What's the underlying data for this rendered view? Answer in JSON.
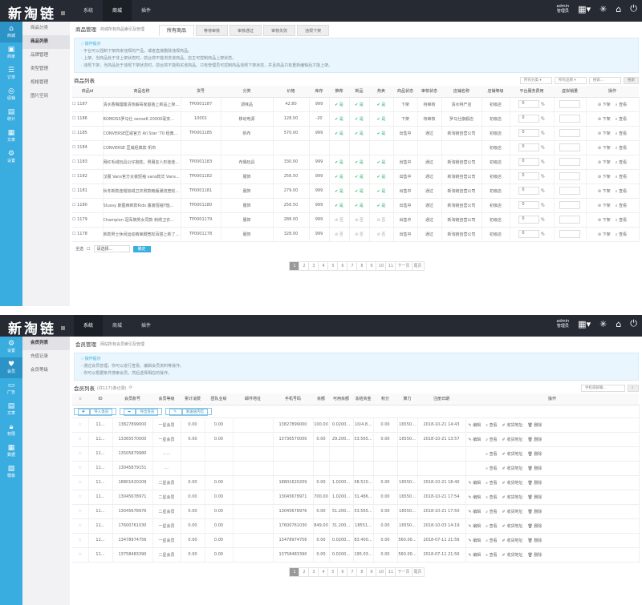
{
  "brand": {
    "logo": "新淘链",
    "nav": [
      "系统",
      "商城",
      "插件"
    ],
    "admin_name": "admin",
    "admin_role": "管理员"
  },
  "colors": {
    "header": "#252a33",
    "sidebar": "#39ace0",
    "accent": "#3aaee0",
    "ok": "#2db36e"
  },
  "panel1": {
    "active_nav": 1,
    "side": [
      {
        "icon": "shop-icon",
        "label": "商城"
      },
      {
        "icon": "bag-icon",
        "label": "商家"
      },
      {
        "icon": "order-icon",
        "label": "订单"
      },
      {
        "icon": "promo-icon",
        "label": "促销"
      },
      {
        "icon": "stat-icon",
        "label": "统计"
      },
      {
        "icon": "article-icon",
        "label": "文章"
      },
      {
        "icon": "settings-icon",
        "label": "设置"
      }
    ],
    "submenu": [
      "商品分类",
      "商品列表",
      "品牌管理",
      "类型管理",
      "规格管理",
      "图片空间"
    ],
    "active_sub": 1,
    "title": "商品管理",
    "desc": "商城所有商品索引及管理",
    "tabs": [
      "所有商品",
      "等待审核",
      "审核通过",
      "审核失败",
      "违规下架"
    ],
    "tips_title": "操作提示",
    "tips": [
      "平台可以强制下架商家违规的产品，或者直接删除违规商品。",
      "上架，当商品处于非上架状态时，前台将不能浏览该商品，店主可控制商品上架状态。",
      "违规下架，当商品处于违规下架状态时，前台将不能购买该商品，只有管理员可控制商品违规下架状态，并且商品只有重新编辑后才能上架。"
    ],
    "list_title": "商品列表",
    "filters": [
      "所有分类",
      "所有品牌",
      "搜索..."
    ],
    "search_btn": "搜索",
    "columns": [
      "商品id",
      "商品名称",
      "货号",
      "分类",
      "价格",
      "库存",
      "推荐",
      "新品",
      "热卖",
      "商品状态",
      "审核状态",
      "店铺名称",
      "店铺等级",
      "平台服务费用",
      "虚拟销量",
      "操作"
    ],
    "rows": [
      [
        "1187",
        "清水香橼醋酸清热解毒家庭装上新品上架...",
        "TP0001187",
        "调味品",
        "42.80",
        "999",
        "是",
        "是",
        "是",
        "下架",
        "待审核",
        "清水特产店",
        "初级店",
        "0"
      ],
      [
        "1186",
        "ROMOSS罗马仕 sense6 20000毫安...",
        "10001",
        "移动电源",
        "128.00",
        "-20",
        "是",
        "是",
        "是",
        "下架",
        "待审核",
        "罗马仕旗舰店",
        "初级店",
        "0"
      ],
      [
        "1185",
        "CONVERSE匡威官方 All Star '70 经典...",
        "TP0001185",
        "帆布",
        "570.00",
        "999",
        "是",
        "是",
        "是",
        "出售中",
        "通过",
        "新淘链自营公司",
        "初级店",
        "0"
      ],
      [
        "1184",
        "CONVERSE 匡威经典款 帆布",
        "",
        "",
        "",
        "",
        "",
        "",
        "",
        "",
        "",
        "",
        "初级店",
        "0"
      ],
      [
        "1183",
        "网红毛绒玩具公仔抱枕，男朋友人形娃娃...",
        "TP0001183",
        "布偶玩具",
        "330.00",
        "999",
        "是",
        "是",
        "是",
        "出售中",
        "通过",
        "新淘链自营公司",
        "初级店",
        "0"
      ],
      [
        "1182",
        "汉服 Vans官方女装短袖 vans款式 Vans...",
        "TP0001182",
        "服饰",
        "256.50",
        "999",
        "是",
        "是",
        "是",
        "出售中",
        "通过",
        "新淘链自营公司",
        "初级店",
        "0"
      ],
      [
        "1181",
        "秋冬新款连帽加绒卫衣男款韩版潮流宽松外...",
        "TP0001181",
        "服饰",
        "279.00",
        "999",
        "是",
        "是",
        "是",
        "出售中",
        "通过",
        "新淘链自营公司",
        "初级店",
        "0"
      ],
      [
        "1180",
        "Stussy 斯图西新款Kids 童装短袖T恤...",
        "TP0001180",
        "服饰",
        "256.50",
        "999",
        "是",
        "是",
        "是",
        "出售中",
        "通过",
        "新淘链自营公司",
        "初级店",
        "0"
      ],
      [
        "1179",
        "Champion 冠军牌男女同款 刺绣卫衣...",
        "TP0001179",
        "服饰",
        "288.00",
        "999",
        "否",
        "否",
        "否",
        "出售中",
        "通过",
        "新淘链自营公司",
        "初级店",
        "0"
      ],
      [
        "1178",
        "新款男士休闲运动裤束脚宽松百搭上新了 新...",
        "TP0001178",
        "服饰",
        "328.00",
        "999",
        "否",
        "否",
        "否",
        "出售中",
        "通过",
        "新淘链自营公司",
        "初级店",
        "0"
      ]
    ],
    "row_ops": [
      "下架",
      "查看"
    ],
    "select_all": "全选",
    "batch_select": "请选择...",
    "confirm": "确定",
    "pages": [
      "1",
      "2",
      "3",
      "4",
      "5",
      "6",
      "7",
      "8",
      "9",
      "10",
      "11",
      "下一页",
      "尾页"
    ]
  },
  "panel2": {
    "active_nav": 0,
    "side": [
      {
        "icon": "settings-icon",
        "label": "设置"
      },
      {
        "icon": "heart-icon",
        "label": "会员"
      },
      {
        "icon": "ad-icon",
        "label": "广告"
      },
      {
        "icon": "doc-icon",
        "label": "文章"
      },
      {
        "icon": "lock-icon",
        "label": "权限"
      },
      {
        "icon": "data-icon",
        "label": "数据"
      },
      {
        "icon": "plugin-icon",
        "label": "模板"
      }
    ],
    "submenu": [
      "会员列表",
      "充值记录",
      "会员等级"
    ],
    "active_sub": 0,
    "title": "会员管理",
    "desc": "网站所有会员索引及管理",
    "tips_title": "操作提示",
    "tips": [
      "通过会员管理，你可以进行查看、编辑会员资料等操作。",
      "你可以根据条件搜索会员，然后选择相应的操作。"
    ],
    "list_title": "会员列表",
    "count": "(共1171条记录)",
    "search_placeholder": "手机或邮箱...",
    "toolbar": [
      "导入会员",
      "导出会员",
      "发送站内信"
    ],
    "columns": [
      "",
      "ID",
      "会员账号",
      "会员等级",
      "累计消费",
      "团队业绩",
      "邮件地址",
      "手机号码",
      "余额",
      "可用余额",
      "冻结资金",
      "积分",
      "算力",
      "注册日期",
      "操作"
    ],
    "rows": [
      [
        "11...",
        "13827899000",
        "一星会员",
        "0.00",
        "0.00",
        "",
        "13827899000",
        "100.00",
        "0.0200...",
        "10/4.8...",
        "0.00",
        "16550...",
        "2018-10-21 14:43"
      ],
      [
        "11...",
        "13365570000",
        "一星会员",
        "0.00",
        "0.00",
        "",
        "13736570000",
        "0.00",
        "29.200...",
        "53.565...",
        "0.00",
        "16550...",
        "2018-10-21 13:57"
      ],
      [
        "11...",
        "13505879980",
        "……",
        "",
        "",
        "",
        "",
        "",
        "",
        "",
        "",
        "",
        ""
      ],
      [
        "11...",
        "13045879151",
        "…",
        "",
        "",
        "",
        "",
        "",
        "",
        "",
        "",
        "",
        ""
      ],
      [
        "11...",
        "18801620209",
        "二星会员",
        "0.00",
        "0.00",
        "",
        "18801620209",
        "0.00",
        "1.0200...",
        "58.520...",
        "0.00",
        "16550...",
        "2018-10-21 18:40"
      ],
      [
        "11...",
        "13045678971",
        "二星会员",
        "0.00",
        "0.00",
        "",
        "13045678971",
        "700.00",
        "1.0200...",
        "31.486...",
        "0.00",
        "16550...",
        "2018-10-21 17:54"
      ],
      [
        "11...",
        "13045678976",
        "二星会员",
        "0.00",
        "0.00",
        "",
        "13045678976",
        "0.00",
        "51.200...",
        "53.565...",
        "0.00",
        "16550...",
        "2018-10-21 17:50"
      ],
      [
        "11...",
        "17600761030",
        "一星会员",
        "0.00",
        "0.00",
        "",
        "17600761030",
        "849.00",
        "31.200...",
        "18551...",
        "0.00",
        "16550...",
        "2018-10-03 14:19"
      ],
      [
        "11...",
        "13478974756",
        "一星会员",
        "0.00",
        "0.00",
        "",
        "13478974756",
        "0.00",
        "0.0200...",
        "83.400...",
        "0.00",
        "560.00...",
        "2018-07-11 21:56"
      ],
      [
        "11...",
        "13758483390",
        "二星会员",
        "0.00",
        "0.00",
        "",
        "13758483390",
        "0.00",
        "0.0200...",
        "195.03...",
        "0.00",
        "560.00...",
        "2018-07-11 21:56"
      ]
    ],
    "row_ops": [
      "编辑",
      "查看",
      "收货地址",
      "删除"
    ],
    "pages": [
      "1",
      "2",
      "3",
      "4",
      "5",
      "6",
      "7",
      "8",
      "9",
      "10",
      "11",
      "下一页",
      "尾页"
    ]
  }
}
